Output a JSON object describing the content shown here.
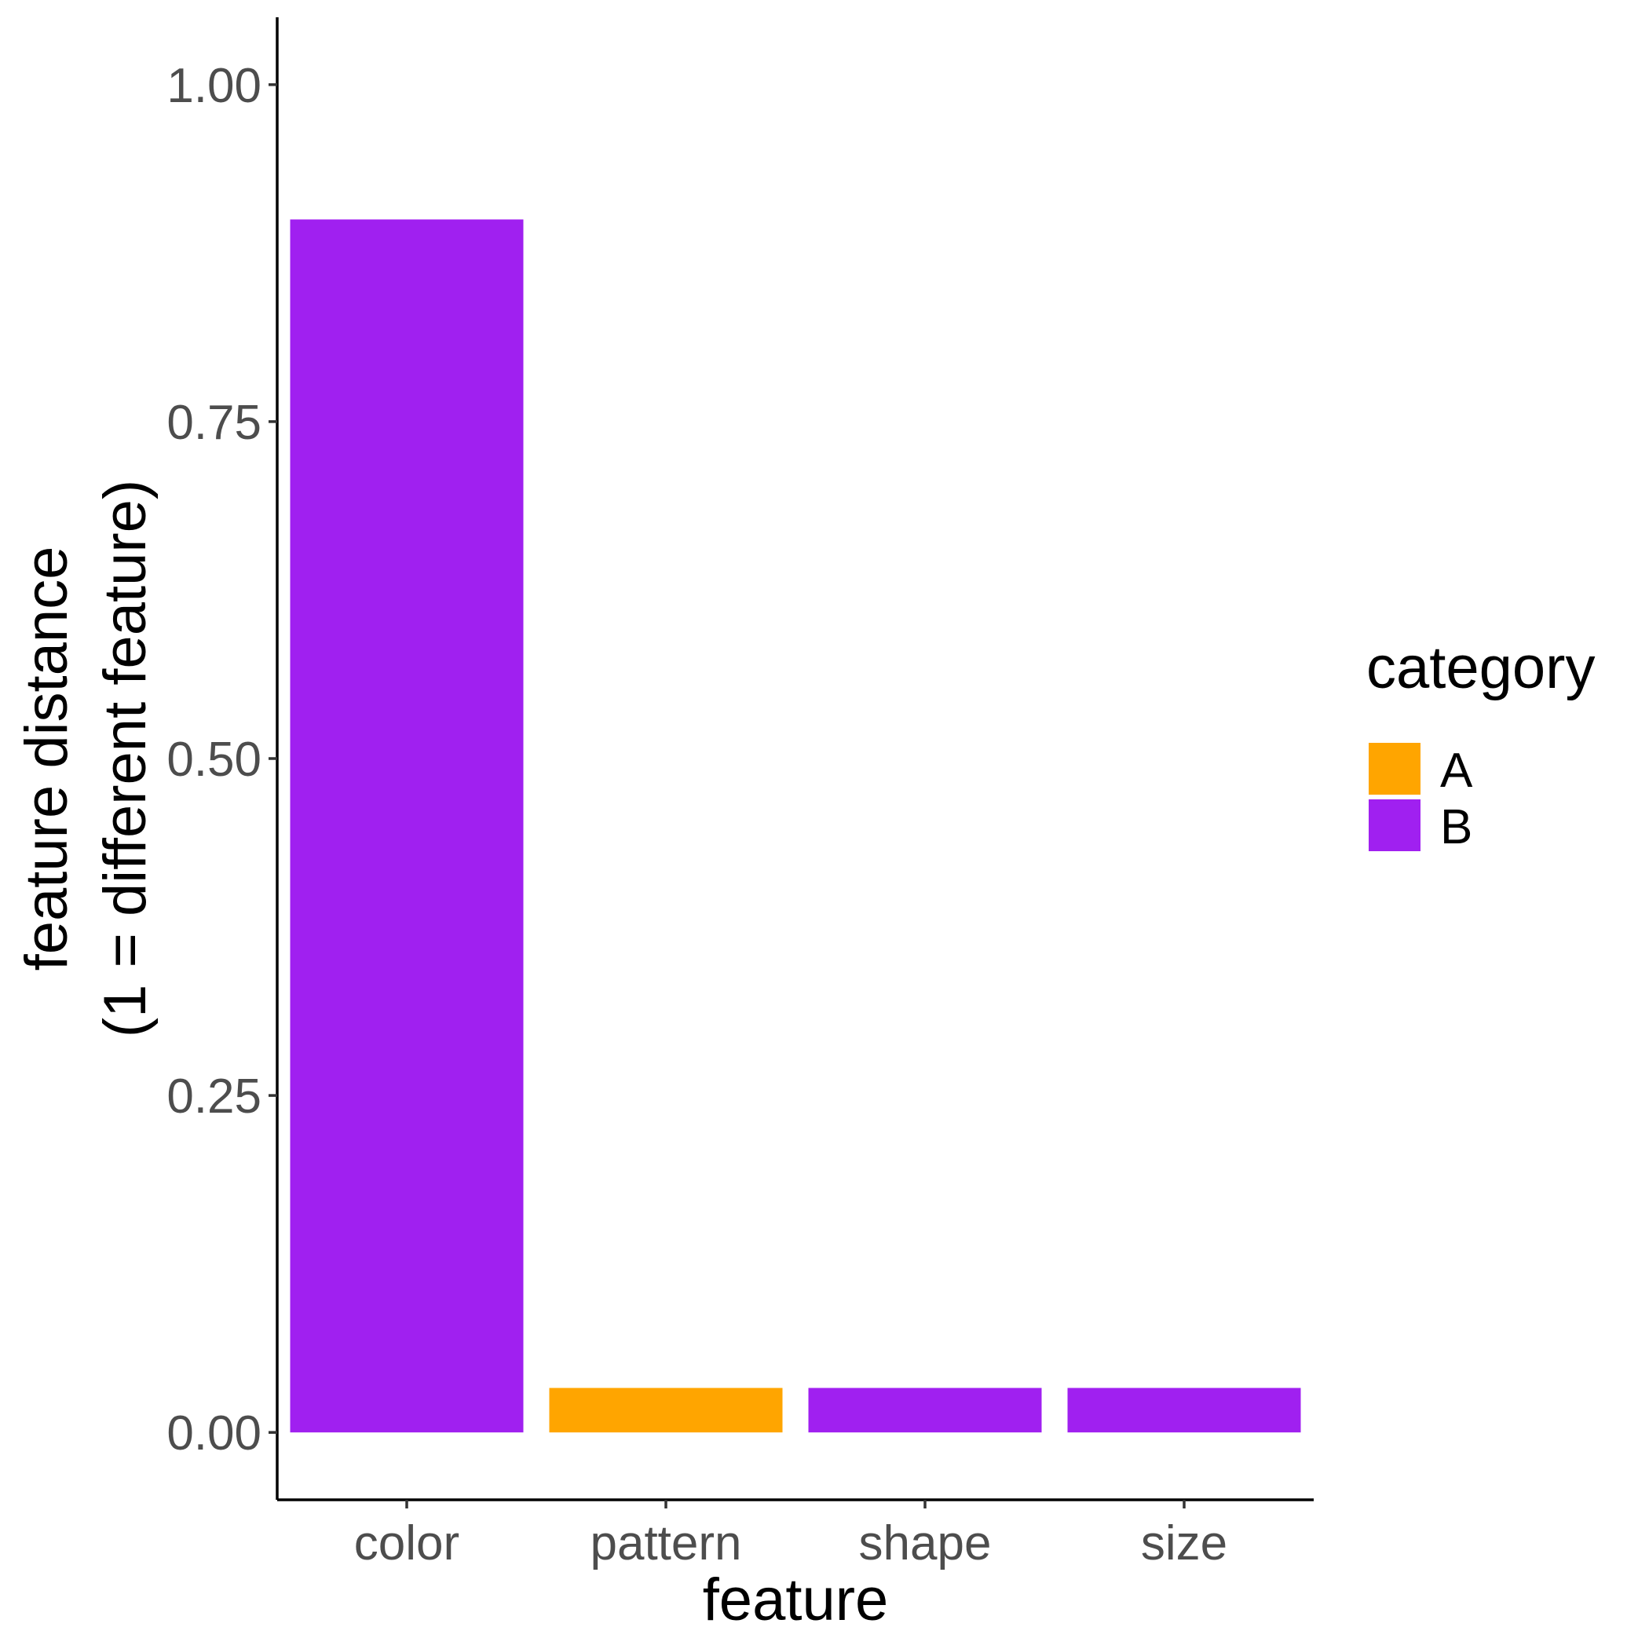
{
  "chart_data": {
    "type": "bar",
    "categories": [
      "color",
      "pattern",
      "shape",
      "size"
    ],
    "values": [
      0.9,
      0.033,
      0.033,
      0.033
    ],
    "bar_category": [
      "B",
      "A",
      "B",
      "B"
    ],
    "xlabel": "feature",
    "ylabel_lines": [
      "feature distance",
      "(1 = different feature)"
    ],
    "ylim": [
      -0.05,
      1.05
    ],
    "yticks": [
      0.0,
      0.25,
      0.5,
      0.75,
      1.0
    ],
    "ytick_labels": [
      "0.00",
      "0.25",
      "0.50",
      "0.75",
      "1.00"
    ],
    "grid": false,
    "legend": {
      "title": "category",
      "position": "right",
      "entries": [
        {
          "label": "A",
          "color": "#FFA500"
        },
        {
          "label": "B",
          "color": "#A020F0"
        }
      ]
    }
  }
}
